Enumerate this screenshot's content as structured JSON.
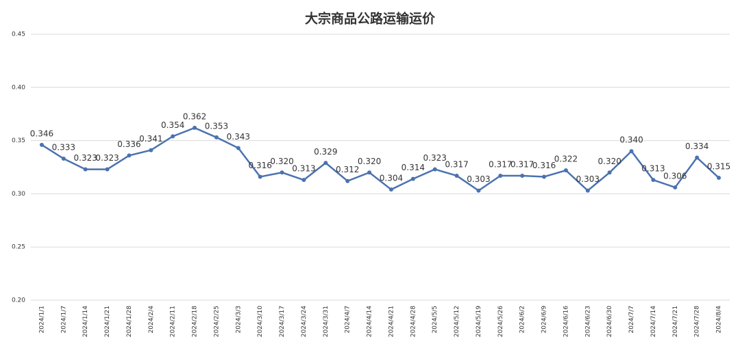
{
  "chart_data": {
    "type": "line",
    "title": "大宗商品公路运输运价",
    "categories": [
      "2024/1/1",
      "2024/1/7",
      "2024/1/14",
      "2024/1/21",
      "2024/1/28",
      "2024/2/4",
      "2024/2/11",
      "2024/2/18",
      "2024/2/25",
      "2024/3/3",
      "2024/3/10",
      "2024/3/17",
      "2024/3/24",
      "2024/3/31",
      "2024/4/7",
      "2024/4/14",
      "2024/4/21",
      "2024/4/28",
      "2024/5/5",
      "2024/5/12",
      "2024/5/19",
      "2024/5/26",
      "2024/6/2",
      "2024/6/9",
      "2024/6/16",
      "2024/6/23",
      "2024/6/30",
      "2024/7/7",
      "2024/7/14",
      "2024/7/21",
      "2024/7/28",
      "2024/8/4"
    ],
    "values": [
      0.346,
      0.333,
      0.323,
      0.323,
      0.336,
      0.341,
      0.354,
      0.362,
      0.353,
      0.343,
      0.316,
      0.32,
      0.313,
      0.329,
      0.312,
      0.32,
      0.304,
      0.314,
      0.323,
      0.317,
      0.303,
      0.317,
      0.317,
      0.316,
      0.322,
      0.303,
      0.32,
      0.34,
      0.313,
      0.306,
      0.334,
      0.315
    ],
    "value_labels": [
      "0.346",
      "0.333",
      "0.323",
      "0.323",
      "0.336",
      "0.341",
      "0.354",
      "0.362",
      "0.353",
      "0.343",
      "0.316",
      "0.320",
      "0.313",
      "0.329",
      "0.312",
      "0.320",
      "0.304",
      "0.314",
      "0.323",
      "0.317",
      "0.303",
      "0.317",
      "0.317",
      "0.316",
      "0.322",
      "0.303",
      "0.320",
      "0.340",
      "0.313",
      "0.306",
      "0.334",
      "0.315"
    ],
    "color": "#4a72b0",
    "ylim": [
      0.2,
      0.45
    ],
    "yticks": [
      {
        "value": 0.2,
        "label": "0.20"
      },
      0.25,
      {
        "value": 0.3,
        "label": "0.30"
      },
      0.35,
      {
        "value": 0.4,
        "label": "0.40"
      },
      0.45
    ],
    "grid": true
  }
}
